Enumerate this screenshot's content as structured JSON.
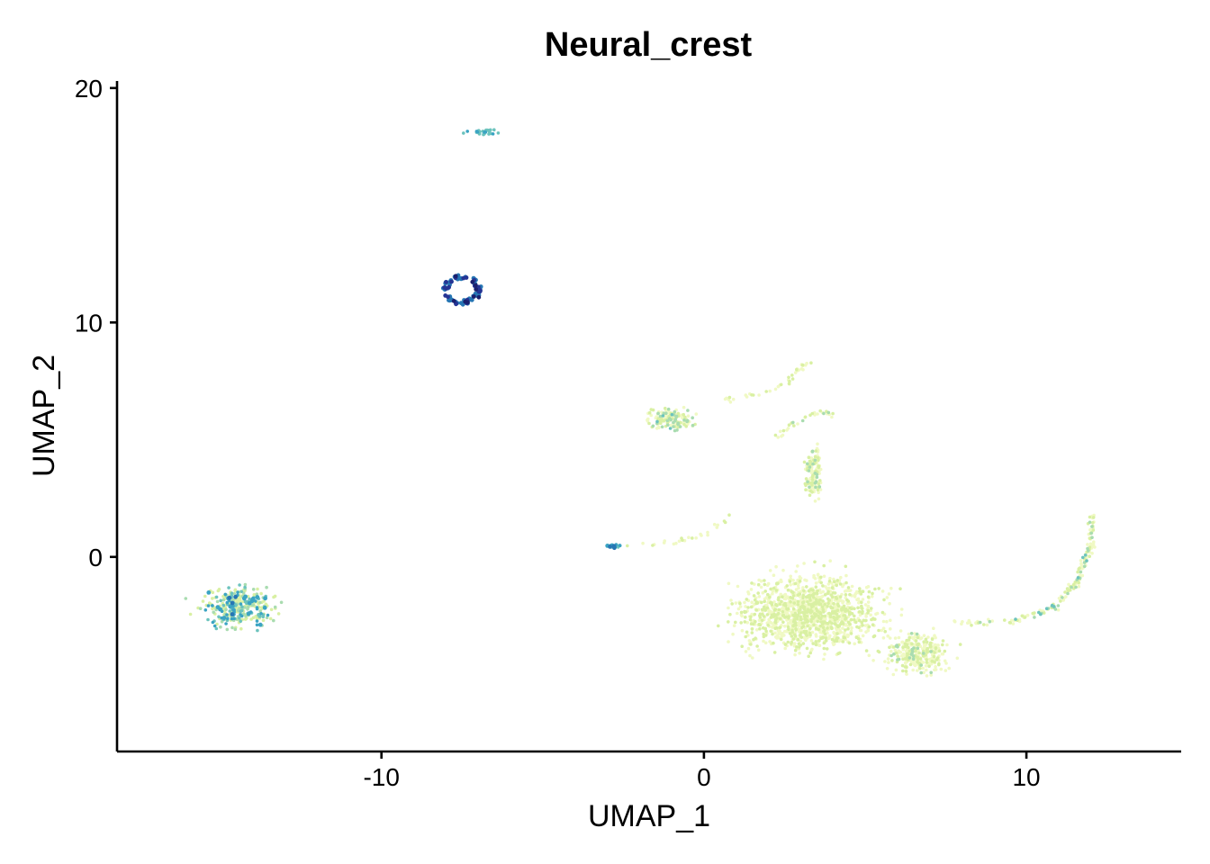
{
  "chart_data": {
    "type": "scatter",
    "title": "Neural_crest",
    "xlabel": "UMAP_1",
    "ylabel": "UMAP_2",
    "xlim": [
      -18.2,
      14.8
    ],
    "ylim": [
      -8.3,
      20.3
    ],
    "x_ticks": [
      {
        "value": -10,
        "label": "-10"
      },
      {
        "value": 0,
        "label": "0"
      },
      {
        "value": 10,
        "label": "10"
      }
    ],
    "y_ticks": [
      {
        "value": 0,
        "label": "0"
      },
      {
        "value": 10,
        "label": "10"
      },
      {
        "value": 20,
        "label": "20"
      }
    ],
    "grid": false,
    "legend": "none",
    "color_scale": [
      "#f0f9c4",
      "#d9f0a3",
      "#a9dcb0",
      "#6cc3bd",
      "#3ba4c3",
      "#2676b4",
      "#253494",
      "#1a1f6e"
    ],
    "clusters": [
      {
        "id": "top-small",
        "cx": -6.9,
        "cy": 18.15,
        "rx": 0.9,
        "ry": 0.25,
        "n": 30,
        "level": [
          0.35,
          0.6
        ]
      },
      {
        "id": "ring",
        "cx": -7.5,
        "cy": 11.4,
        "rx": 0.55,
        "ry": 0.6,
        "n": 90,
        "level": [
          0.65,
          1.0
        ],
        "ring": true
      },
      {
        "id": "left-leaf",
        "cx": -14.4,
        "cy": -2.2,
        "rx": 1.9,
        "ry": 1.5,
        "n": 320,
        "level": [
          0.1,
          0.65
        ]
      },
      {
        "id": "mid-small",
        "cx": -2.8,
        "cy": 0.45,
        "rx": 0.35,
        "ry": 0.15,
        "n": 20,
        "level": [
          0.45,
          0.7
        ]
      },
      {
        "id": "upper-blob",
        "cx": -1.0,
        "cy": 5.9,
        "rx": 1.3,
        "ry": 0.75,
        "n": 140,
        "level": [
          0.0,
          0.4
        ]
      },
      {
        "id": "main-body",
        "cx": 3.3,
        "cy": -2.4,
        "rx": 3.7,
        "ry": 2.7,
        "n": 1300,
        "level": [
          0.0,
          0.2
        ]
      },
      {
        "id": "right-lobe",
        "cx": 6.6,
        "cy": -4.1,
        "rx": 1.6,
        "ry": 1.5,
        "n": 300,
        "level": [
          0.0,
          0.25
        ]
      },
      {
        "id": "neck",
        "cx": 3.4,
        "cy": 3.6,
        "rx": 0.5,
        "ry": 2.0,
        "n": 140,
        "level": [
          0.0,
          0.3
        ]
      }
    ],
    "paths": [
      {
        "id": "upper-arm",
        "points": [
          [
            0.6,
            6.7
          ],
          [
            1.8,
            7.0
          ],
          [
            2.6,
            7.4
          ],
          [
            3.0,
            8.1
          ],
          [
            3.3,
            8.3
          ]
        ],
        "n": 40,
        "level": [
          0.0,
          0.2
        ]
      },
      {
        "id": "neck-arm",
        "points": [
          [
            2.2,
            5.0
          ],
          [
            2.8,
            5.7
          ],
          [
            3.5,
            6.1
          ],
          [
            4.0,
            6.1
          ]
        ],
        "n": 30,
        "level": [
          0.0,
          0.3
        ]
      },
      {
        "id": "right-arm",
        "points": [
          [
            7.8,
            -2.8
          ],
          [
            9.5,
            -2.8
          ],
          [
            10.8,
            -2.2
          ],
          [
            11.6,
            -1.0
          ],
          [
            12.0,
            0.5
          ],
          [
            12.0,
            1.8
          ]
        ],
        "n": 170,
        "level": [
          0.0,
          0.45
        ]
      },
      {
        "id": "left-bridge",
        "points": [
          [
            -2.4,
            0.5
          ],
          [
            -1.0,
            0.6
          ],
          [
            0.0,
            0.9
          ],
          [
            0.8,
            1.8
          ]
        ],
        "n": 25,
        "level": [
          0.0,
          0.2
        ]
      }
    ]
  }
}
